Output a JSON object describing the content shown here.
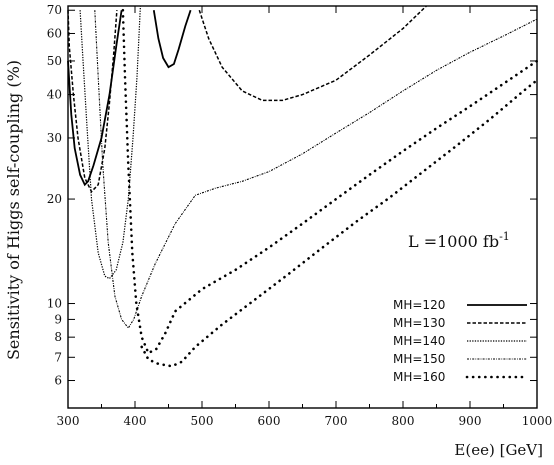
{
  "chart_data": {
    "type": "line",
    "xlabel": "E(ee) [GeV]",
    "ylabel": "Sensitivity of Higgs self-coupling (%)",
    "xlim": [
      300,
      1000
    ],
    "ylim": [
      5,
      72
    ],
    "yscale": "log",
    "grid": false,
    "legend_position": "bottom-right",
    "annotation": {
      "text": "L =1000 fb",
      "superscript": "-1",
      "x": 800,
      "y": 15
    },
    "x_ticks": [
      300,
      400,
      500,
      600,
      700,
      800,
      900,
      1000
    ],
    "y_ticks": [
      6,
      7,
      8,
      9,
      10,
      20,
      30,
      40,
      50,
      60,
      70
    ],
    "series": [
      {
        "name": "MH=120",
        "style": "solid",
        "segments": [
          [
            [
              300,
              50
            ],
            [
              305,
              35
            ],
            [
              310,
              28
            ],
            [
              318,
              23.5
            ],
            [
              325,
              22
            ],
            [
              330,
              22.5
            ],
            [
              338,
              25
            ],
            [
              350,
              30
            ],
            [
              362,
              40
            ],
            [
              372,
              55
            ],
            [
              380,
              70
            ]
          ],
          [
            [
              428,
              70
            ],
            [
              435,
              58
            ],
            [
              442,
              51
            ],
            [
              450,
              48
            ],
            [
              458,
              49
            ],
            [
              465,
              54
            ],
            [
              475,
              63
            ],
            [
              483,
              70
            ]
          ]
        ]
      },
      {
        "name": "MH=130",
        "style": "dashed",
        "segments": [
          [
            [
              300,
              70
            ],
            [
              302,
              55
            ],
            [
              308,
              40
            ],
            [
              315,
              30
            ],
            [
              325,
              23
            ],
            [
              335,
              21
            ],
            [
              345,
              22
            ],
            [
              355,
              28
            ],
            [
              362,
              38
            ],
            [
              368,
              52
            ],
            [
              373,
              70
            ]
          ],
          [
            [
              496,
              70
            ],
            [
              510,
              58
            ],
            [
              530,
              48
            ],
            [
              560,
              41
            ],
            [
              590,
              38.5
            ],
            [
              620,
              38.5
            ],
            [
              650,
              40
            ],
            [
              700,
              44
            ],
            [
              750,
              52
            ],
            [
              800,
              62
            ],
            [
              835,
              72
            ]
          ]
        ]
      },
      {
        "name": "MH=140",
        "style": "densely-dotted",
        "segments": [
          [
            [
              318,
              70
            ],
            [
              322,
              52
            ],
            [
              328,
              33
            ],
            [
              335,
              20
            ],
            [
              345,
              14
            ],
            [
              355,
              12
            ],
            [
              362,
              11.8
            ],
            [
              372,
              12.5
            ],
            [
              382,
              15
            ],
            [
              390,
              20
            ],
            [
              397,
              30
            ],
            [
              403,
              45
            ],
            [
              408,
              72
            ]
          ]
        ]
      },
      {
        "name": "MH=150",
        "style": "dash-dot",
        "segments": [
          [
            [
              340,
              70
            ],
            [
              345,
              45
            ],
            [
              352,
              25
            ],
            [
              360,
              15
            ],
            [
              370,
              10.5
            ],
            [
              380,
              9
            ],
            [
              390,
              8.5
            ],
            [
              398,
              9
            ],
            [
              410,
              10.5
            ],
            [
              430,
              13
            ],
            [
              460,
              17
            ],
            [
              490,
              20.5
            ],
            [
              520,
              21.5
            ],
            [
              560,
              22.5
            ],
            [
              600,
              24
            ],
            [
              650,
              27
            ],
            [
              700,
              31
            ],
            [
              750,
              35.5
            ],
            [
              800,
              41
            ],
            [
              850,
              47
            ],
            [
              900,
              53
            ],
            [
              950,
              59
            ],
            [
              1000,
              66
            ]
          ]
        ]
      },
      {
        "name": "MH=160",
        "style": "dotted",
        "segments": [
          [
            [
              382,
              70
            ],
            [
              385,
              45
            ],
            [
              390,
              25
            ],
            [
              396,
              14
            ],
            [
              402,
              10
            ],
            [
              410,
              8
            ],
            [
              420,
              7.2
            ],
            [
              432,
              7.4
            ],
            [
              445,
              8.2
            ],
            [
              460,
              9.5
            ],
            [
              500,
              11
            ],
            [
              550,
              12.5
            ],
            [
              600,
              14.5
            ],
            [
              650,
              17
            ],
            [
              700,
              20
            ],
            [
              750,
              23.5
            ],
            [
              800,
              27.5
            ],
            [
              850,
              32
            ],
            [
              900,
              37
            ],
            [
              950,
              43
            ],
            [
              1000,
              50
            ]
          ],
          [
            [
              410,
              7.5
            ],
            [
              420,
              6.9
            ],
            [
              435,
              6.7
            ],
            [
              455,
              6.6
            ],
            [
              470,
              6.8
            ],
            [
              490,
              7.5
            ],
            [
              530,
              8.7
            ],
            [
              580,
              10.3
            ],
            [
              630,
              12.2
            ],
            [
              680,
              14.5
            ],
            [
              730,
              17.2
            ],
            [
              780,
              20.2
            ],
            [
              830,
              24
            ],
            [
              880,
              28.5
            ],
            [
              930,
              34
            ],
            [
              980,
              41
            ],
            [
              1000,
              44
            ]
          ]
        ]
      }
    ]
  }
}
